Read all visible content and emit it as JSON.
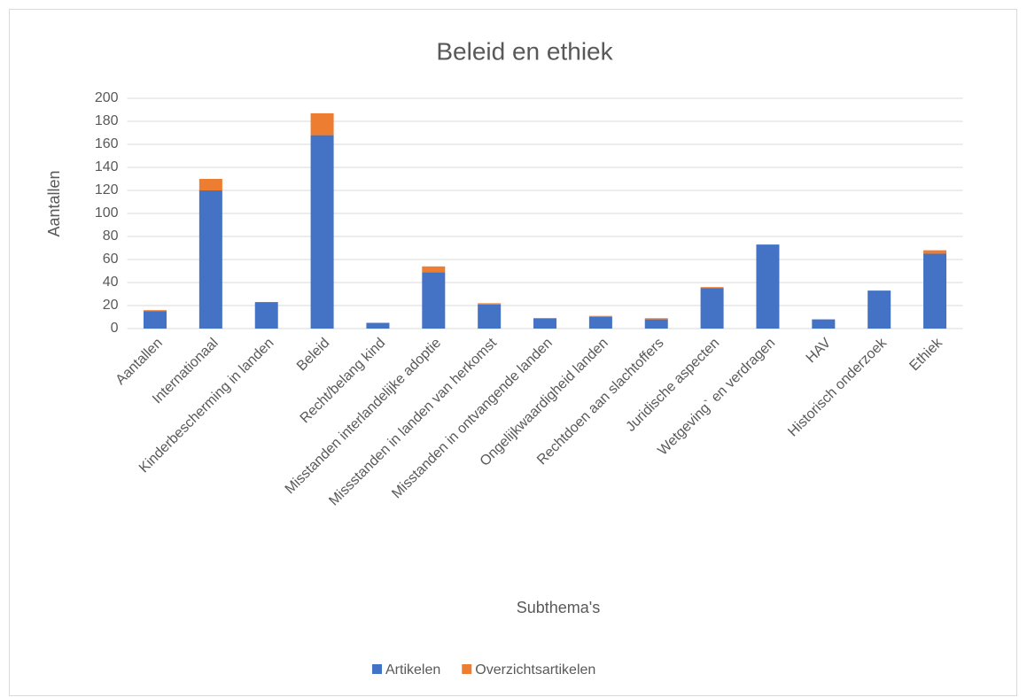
{
  "chart_data": {
    "type": "stacked_bar",
    "title": "Beleid en ethiek",
    "x_label": "Subthema's",
    "y_label": "Aantallen",
    "categories": [
      "Aantallen",
      "Internationaal",
      "Kinderbescherming in landen",
      "Beleid",
      "Recht/belang kind",
      "Misstanden interlandelijke adoptie",
      "Missstanden in landen van herkomst",
      "Misstanden in ontvangende landen",
      "Ongelijkwaardigheid landen",
      "Rechtdoen aan slachtoffers",
      "Juridische aspecten",
      "Wetgeving` en verdragen",
      "HAV",
      "Historisch onderzoek",
      "Ethiek"
    ],
    "series": [
      {
        "name": "Artikelen",
        "color": "#4472c4",
        "values": [
          15,
          120,
          23,
          168,
          5,
          49,
          21,
          9,
          10,
          8,
          35,
          73,
          8,
          33,
          65
        ]
      },
      {
        "name": "Overzichtsartikelen",
        "color": "#ed7d31",
        "values": [
          1,
          10,
          0,
          19,
          0,
          5,
          1,
          0,
          1,
          1,
          1,
          0,
          0,
          0,
          3
        ]
      }
    ],
    "ylim": [
      0,
      200
    ],
    "yticks": [
      0,
      20,
      40,
      60,
      80,
      100,
      120,
      140,
      160,
      180,
      200
    ],
    "grid": true,
    "legend": "bottom"
  }
}
